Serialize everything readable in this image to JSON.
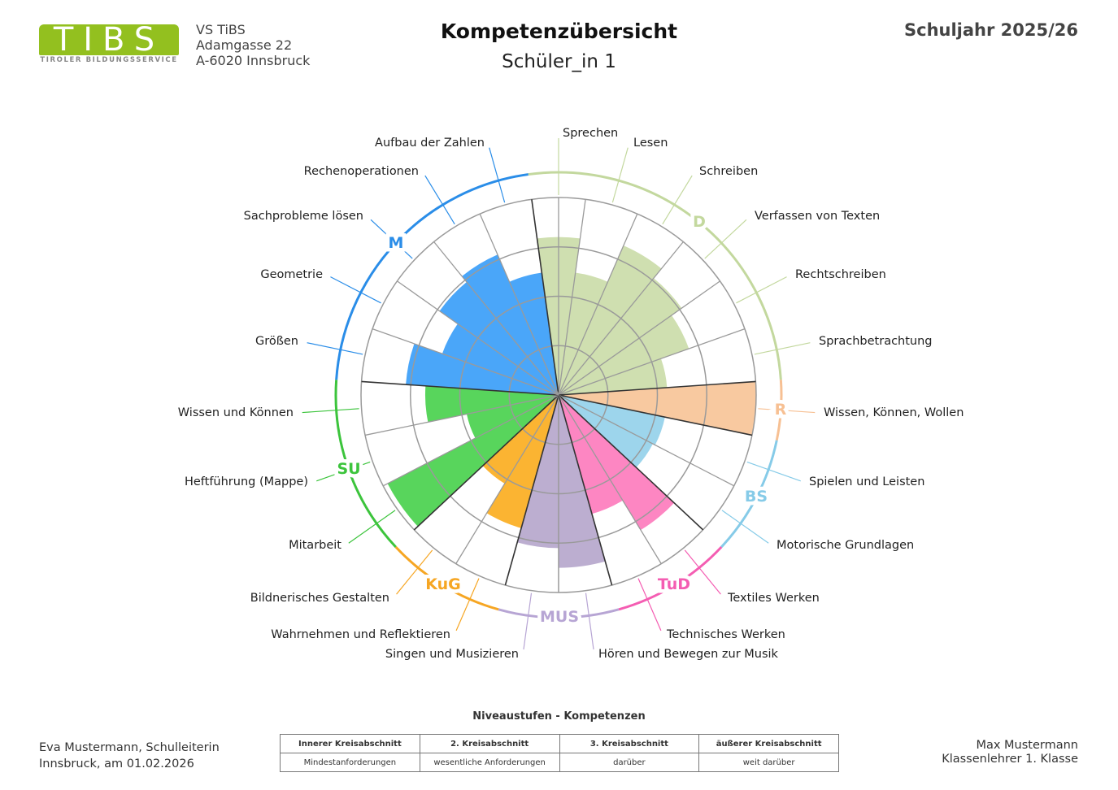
{
  "header": {
    "logo_text": "TIBS",
    "logo_subtitle": "TIROLER BILDUNGSSERVICE",
    "school": "VS TiBS",
    "street": "Adamgasse 22",
    "city": "A-6020 Innsbruck",
    "title": "Kompetenzübersicht",
    "student": "Schüler_in 1",
    "school_year": "Schuljahr 2025/26"
  },
  "chart_data": {
    "type": "bar",
    "coordinate_system": "polar",
    "rlim": [
      0,
      4
    ],
    "ring_levels": [
      1,
      2,
      3,
      4
    ],
    "grid": true,
    "groups": [
      {
        "name": "D",
        "fill": "#cfdfb0",
        "arc": "#c3d89e",
        "competencies": [
          {
            "label": "Sprechen",
            "value": 3.2
          },
          {
            "label": "Lesen",
            "value": 2.5
          },
          {
            "label": "Schreiben",
            "value": 3.3
          },
          {
            "label": "Verfassen von Texten",
            "value": 3.05
          },
          {
            "label": "Rechtschreiben",
            "value": 2.8
          },
          {
            "label": "Sprachbetrachtung",
            "value": 2.2
          }
        ]
      },
      {
        "name": "R",
        "fill": "#f8c9a0",
        "arc": "#f7c093",
        "competencies": [
          {
            "label": "Wissen, Können, Wollen",
            "value": 4.0
          }
        ]
      },
      {
        "name": "BS",
        "fill": "#9dd5ec",
        "arc": "#86cbe8",
        "competencies": [
          {
            "label": "Spielen und Leisten",
            "value": 2.2
          },
          {
            "label": "Motorische Grundlagen",
            "value": 2.15
          }
        ]
      },
      {
        "name": "TuD",
        "fill": "#fd86c2",
        "arc": "#f45db2",
        "competencies": [
          {
            "label": "Textiles Werken",
            "value": 3.2
          },
          {
            "label": "Technisches Werken",
            "value": 2.5
          }
        ]
      },
      {
        "name": "MUS",
        "fill": "#bcaed0",
        "arc": "#b7a5d4",
        "competencies": [
          {
            "label": "Hören und Bewegen zur Musik",
            "value": 3.5
          },
          {
            "label": "Singen und Musizieren",
            "value": 3.1
          }
        ]
      },
      {
        "name": "KuG",
        "fill": "#fbb432",
        "arc": "#f6a623",
        "competencies": [
          {
            "label": "Wahrnehmen und Reflektieren",
            "value": 2.8
          },
          {
            "label": "Bildnerisches Gestalten",
            "value": 2.1
          }
        ]
      },
      {
        "name": "SU",
        "fill": "#58d55c",
        "arc": "#3cc43c",
        "competencies": [
          {
            "label": "Mitarbeit",
            "value": 3.9
          },
          {
            "label": "Heftführung (Mappe)",
            "value": 1.9
          },
          {
            "label": "Wissen und Können",
            "value": 2.7
          }
        ]
      },
      {
        "name": "M",
        "fill": "#4aa6f9",
        "arc": "#2a8de8",
        "competencies": [
          {
            "label": "Größen",
            "value": 3.1
          },
          {
            "label": "Geometrie",
            "value": 2.5
          },
          {
            "label": "Sachprobleme lösen",
            "value": 2.95
          },
          {
            "label": "Rechenoperationen",
            "value": 3.1
          },
          {
            "label": "Aufbau der Zahlen",
            "value": 2.5
          }
        ]
      }
    ]
  },
  "legend": {
    "title": "Niveaustufen - Kompetenzen",
    "headers": [
      "Innerer Kreisabschnitt",
      "2. Kreisabschnitt",
      "3. Kreisabschnitt",
      "äußerer Kreisabschnitt"
    ],
    "descriptions": [
      "Mindestanforderungen",
      "wesentliche Anforderungen",
      "darüber",
      "weit darüber"
    ]
  },
  "footer": {
    "principal": "Eva Mustermann, Schulleiterin",
    "place_date": "Innsbruck, am 01.02.2026",
    "teacher": "Max Mustermann",
    "teacher_role": "Klassenlehrer 1. Klasse"
  }
}
